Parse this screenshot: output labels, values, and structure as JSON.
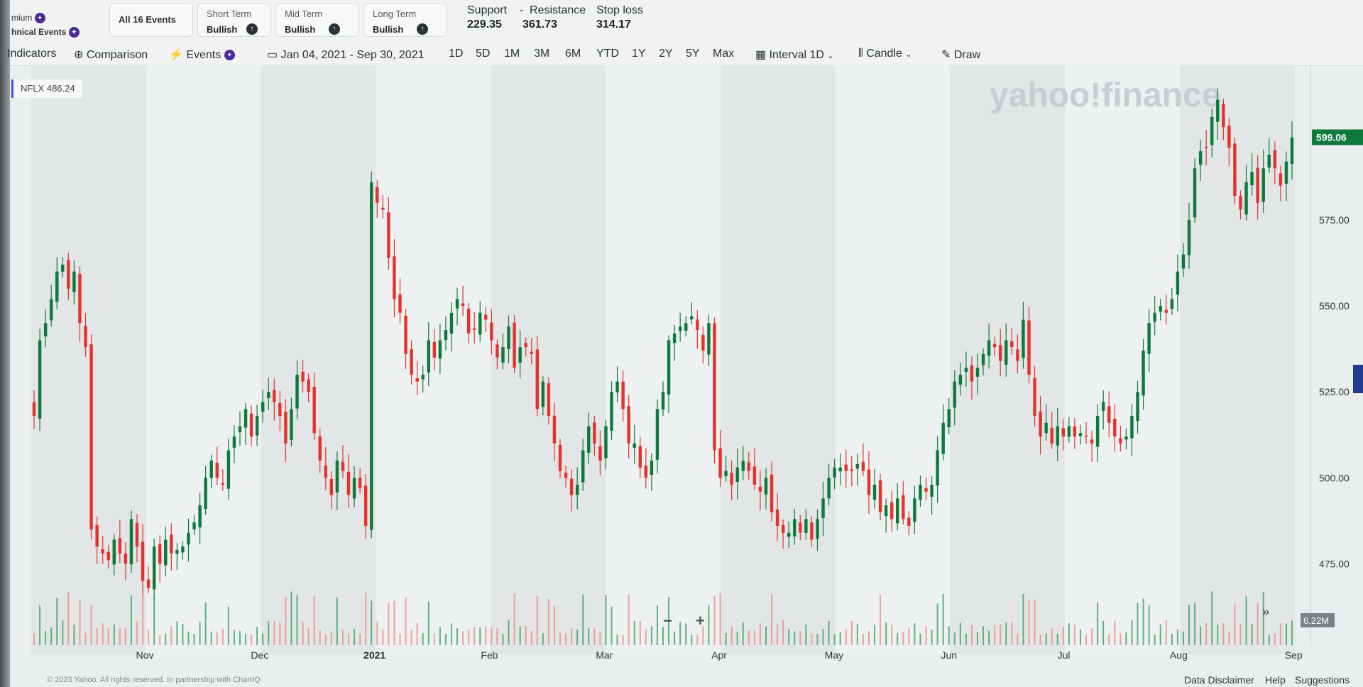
{
  "header": {
    "premium_fragment": "mium",
    "tech_events_fragment": "hnical Events",
    "all_events": "All 16 Events",
    "short_term": {
      "label": "Short Term",
      "value": "Bullish"
    },
    "mid_term": {
      "label": "Mid Term",
      "value": "Bullish"
    },
    "long_term": {
      "label": "Long Term",
      "value": "Bullish"
    },
    "support_label": "Support",
    "resistance_label": "Resistance",
    "support_value": "229.35",
    "resistance_value": "361.73",
    "stop_loss_label": "Stop loss",
    "stop_loss_value": "314.17"
  },
  "toolbar": {
    "indicators": "Indicators",
    "comparison": "Comparison",
    "events": "Events",
    "date_range": "Jan 04, 2021 - Sep 30, 2021",
    "ranges": [
      "1D",
      "5D",
      "1M",
      "3M",
      "6M",
      "YTD",
      "1Y",
      "2Y",
      "5Y",
      "Max"
    ],
    "interval": "Interval",
    "interval_value": "1D",
    "chart_type": "Candle",
    "draw": "Draw"
  },
  "symbol_tag": "NFLX 486.24",
  "watermark": "yahoo!finance",
  "zoom_out": "−",
  "zoom_in": "+",
  "more": "»",
  "footer": {
    "copyright": "© 2023 Yahoo. All rights reserved. In partnership with ChartIQ",
    "disclaimer": "Data Disclaimer",
    "help": "Help",
    "suggestions": "Suggestions"
  },
  "colors": {
    "up": "#0d7a3c",
    "down": "#e5322d",
    "price_tag": "#0d7a3c"
  },
  "chart_data": {
    "type": "candlestick",
    "ticker": "NFLX",
    "x_labels": [
      "Nov",
      "Dec",
      "2021",
      "Feb",
      "Mar",
      "Apr",
      "May",
      "Jun",
      "Jul",
      "Aug",
      "Sep"
    ],
    "y_ticks": [
      475.0,
      500.0,
      525.0,
      550.0,
      575.0
    ],
    "y_tick_labels": [
      "475.00",
      "500.00",
      "525.00",
      "550.00",
      "575.00"
    ],
    "ylim": [
      460,
      620
    ],
    "last_price": 599.06,
    "last_price_label": "599.06",
    "volume_label": "6.22M",
    "grid": false,
    "closes": [
      518,
      540,
      545,
      552,
      560,
      562,
      555,
      560,
      545,
      538,
      485,
      480,
      478,
      476,
      482,
      478,
      475,
      488,
      480,
      470,
      468,
      480,
      475,
      482,
      478,
      479,
      480,
      484,
      487,
      492,
      500,
      505,
      500,
      498,
      508,
      512,
      515,
      520,
      512,
      518,
      522,
      525,
      522,
      518,
      510,
      520,
      530,
      528,
      525,
      513,
      505,
      500,
      495,
      505,
      502,
      495,
      500,
      497,
      486,
      586,
      580,
      578,
      564,
      552,
      548,
      536,
      530,
      528,
      530,
      540,
      535,
      540,
      543,
      548,
      552,
      550,
      542,
      543,
      548,
      546,
      540,
      535,
      538,
      544,
      532,
      538,
      538,
      536,
      520,
      528,
      518,
      510,
      502,
      500,
      495,
      498,
      508,
      515,
      510,
      505,
      515,
      525,
      528,
      520,
      510,
      510,
      503,
      500,
      505,
      520,
      525,
      540,
      542,
      544,
      545,
      547,
      543,
      537,
      545,
      508,
      500,
      502,
      498,
      503,
      505,
      502,
      498,
      496,
      500,
      490,
      486,
      484,
      484,
      488,
      484,
      488,
      482,
      488,
      494,
      500,
      503,
      503,
      502,
      502,
      504,
      502,
      495,
      498,
      490,
      492,
      488,
      494,
      488,
      486,
      494,
      498,
      496,
      498,
      508,
      516,
      520,
      528,
      530,
      532,
      528,
      532,
      536,
      540,
      538,
      534,
      540,
      538,
      534,
      546,
      530,
      518,
      512,
      516,
      510,
      515,
      512,
      515,
      512,
      513,
      512,
      510,
      518,
      522,
      516,
      512,
      510,
      512,
      518,
      525,
      537,
      545,
      548,
      550,
      548,
      552,
      560,
      565,
      575,
      590,
      595,
      596,
      605,
      610,
      602,
      596,
      582,
      578,
      586,
      589,
      580,
      590,
      594,
      590,
      585,
      592,
      599
    ]
  }
}
